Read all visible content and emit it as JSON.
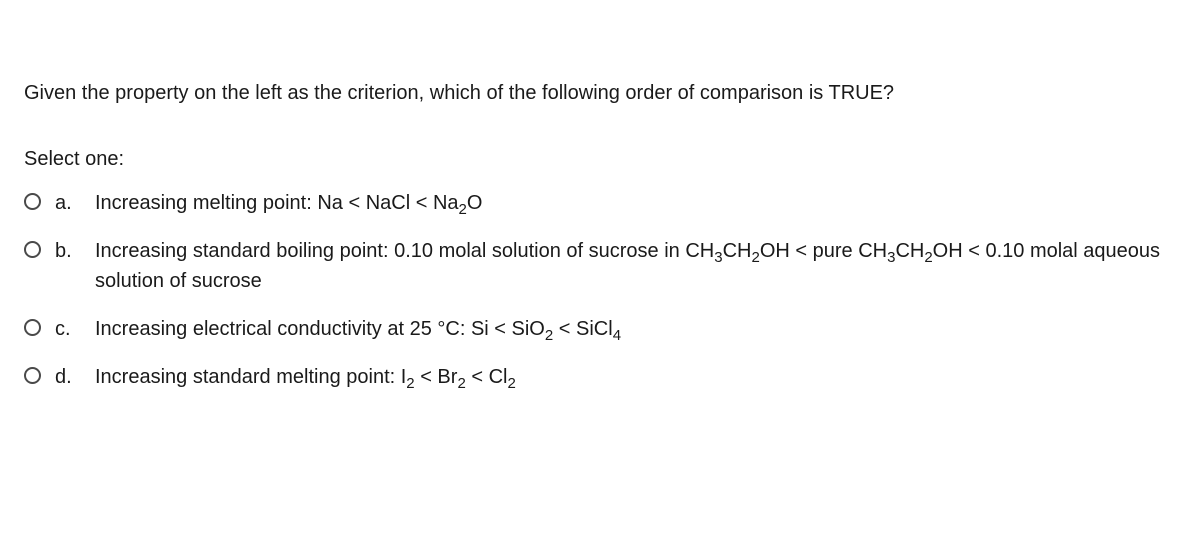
{
  "question": {
    "stem": "Given the property on the left as the criterion, which of the following order of comparison is TRUE?",
    "select_label": "Select one:"
  },
  "options": {
    "a": {
      "letter": "a.",
      "text_prefix": "Increasing melting point: Na < NaCl < Na",
      "sub1": "2",
      "text_suffix": "O"
    },
    "b": {
      "letter": "b.",
      "text_p1": "Increasing standard boiling point: 0.10 molal solution of sucrose in CH",
      "sub1": "3",
      "text_p2": "CH",
      "sub2": "2",
      "text_p3": "OH < pure CH",
      "sub3": "3",
      "text_p4": "CH",
      "sub4": "2",
      "text_p5": "OH < 0.10 molal aqueous solution of sucrose"
    },
    "c": {
      "letter": "c.",
      "text_p1": "Increasing electrical conductivity at 25 °C: Si < SiO",
      "sub1": "2",
      "text_p2": " < SiCl",
      "sub2": "4"
    },
    "d": {
      "letter": "d.",
      "text_p1": "Increasing standard melting point:  I",
      "sub1": "2",
      "text_p2": " < Br",
      "sub2": "2",
      "text_p3": " < Cl",
      "sub3": "2"
    }
  }
}
